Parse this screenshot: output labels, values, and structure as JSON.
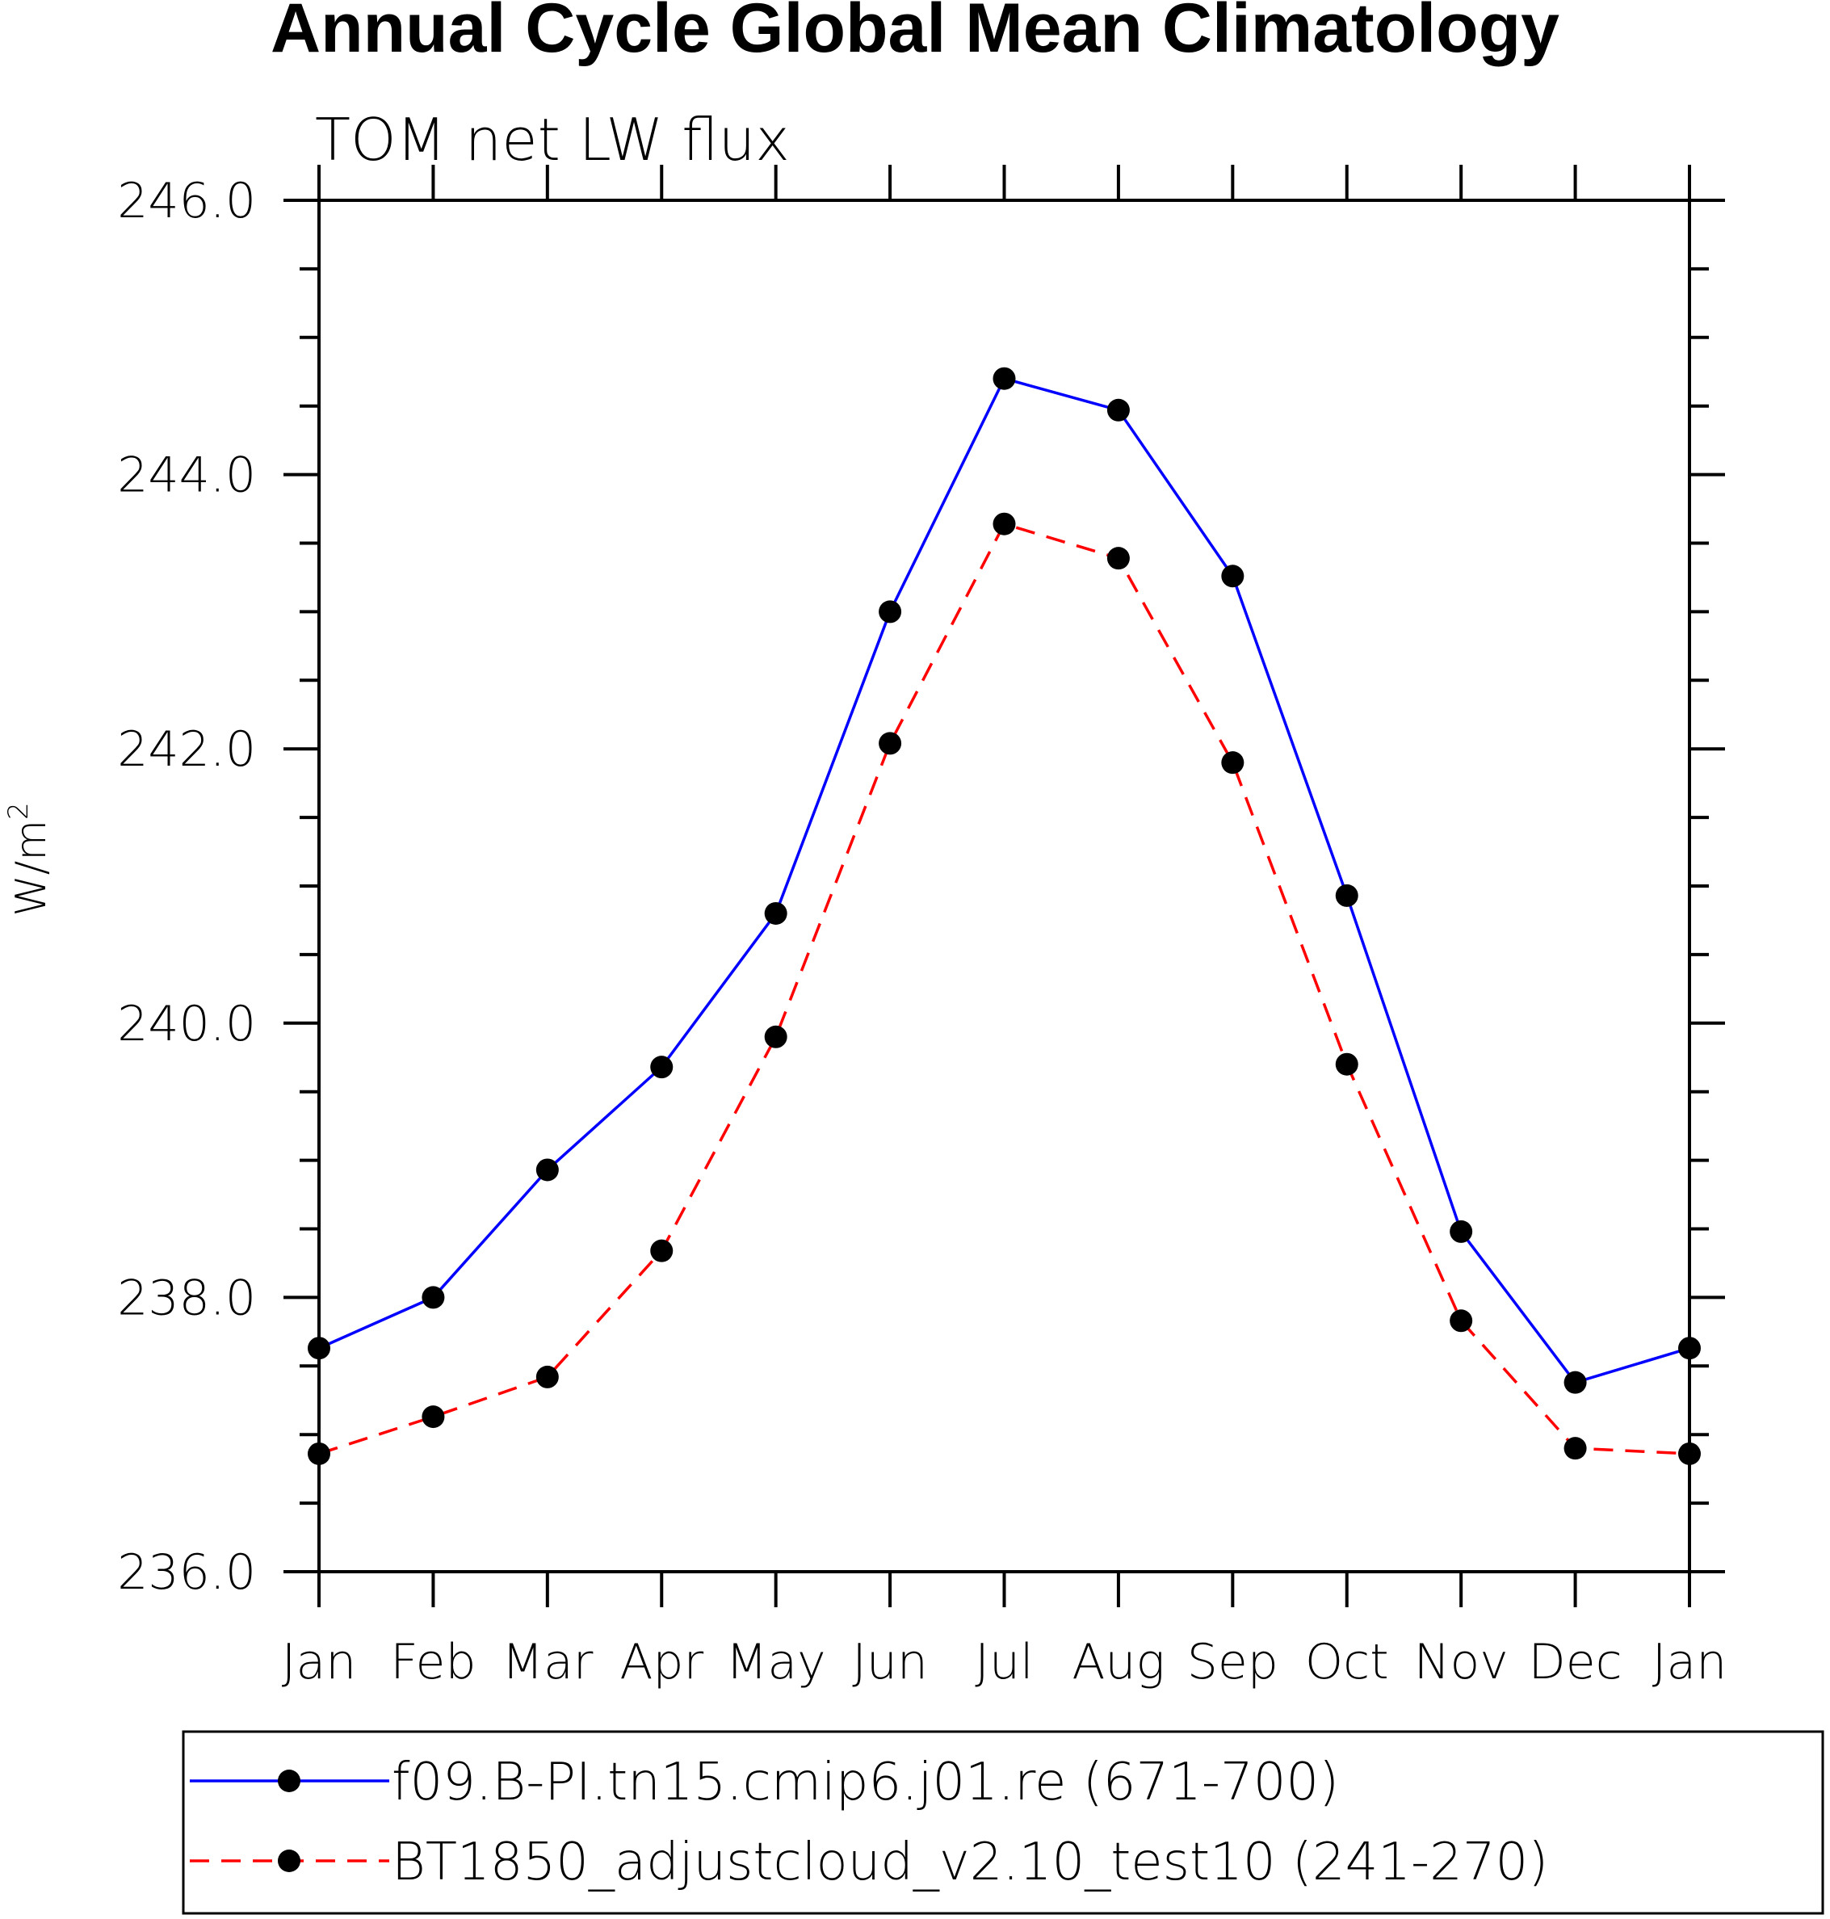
{
  "chart_data": {
    "type": "line",
    "title": "Annual Cycle Global Mean Climatology",
    "subtitle": "TOM net LW flux",
    "ylabel": "W/m",
    "ylabel_superscript": "2",
    "xlabel": "",
    "categories": [
      "Jan",
      "Feb",
      "Mar",
      "Apr",
      "May",
      "Jun",
      "Jul",
      "Aug",
      "Sep",
      "Oct",
      "Nov",
      "Dec",
      "Jan"
    ],
    "y_tick_labels": [
      "236.0",
      "238.0",
      "240.0",
      "242.0",
      "244.0",
      "246.0"
    ],
    "y_ticks": [
      236,
      238,
      240,
      242,
      244,
      246
    ],
    "ylim": [
      236,
      246
    ],
    "y_minor_step": 0.5,
    "grid": false,
    "legend_placement": "bottom",
    "series": [
      {
        "name": "f09.B-PI.tn15.cmip6.j01.re (671-700)",
        "color": "#0000ff",
        "line_style": "solid",
        "marker": "filled-circle",
        "values": [
          237.63,
          238.0,
          238.93,
          239.68,
          240.8,
          243.0,
          244.7,
          244.47,
          243.26,
          240.93,
          238.48,
          237.38,
          237.63
        ]
      },
      {
        "name": "BT1850_adjustcloud_v2.10_test10 (241-270)",
        "color": "#ff0000",
        "line_style": "dashed",
        "marker": "filled-circle",
        "values": [
          236.86,
          237.13,
          237.42,
          238.34,
          239.9,
          242.04,
          243.64,
          243.39,
          241.9,
          239.7,
          237.83,
          236.9,
          236.86
        ]
      }
    ]
  }
}
